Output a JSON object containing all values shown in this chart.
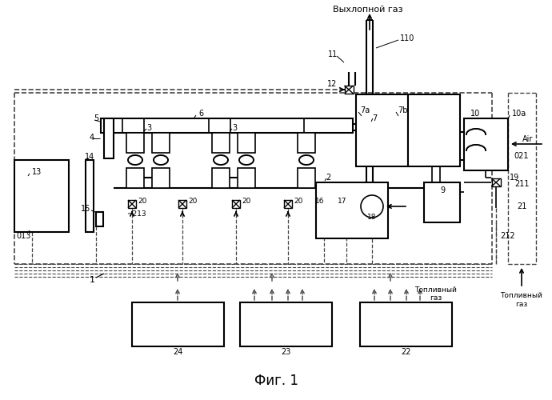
{
  "bg_color": "#ffffff",
  "line_color": "#000000",
  "dash_color": "#444444",
  "title": "Фиг. 1",
  "label_exhaust": "Выхлопной газ",
  "label_air": "Air",
  "label_fuel_gas": "Топливный\nгаз",
  "fig_width": 6.9,
  "fig_height": 5.0,
  "dpi": 100
}
